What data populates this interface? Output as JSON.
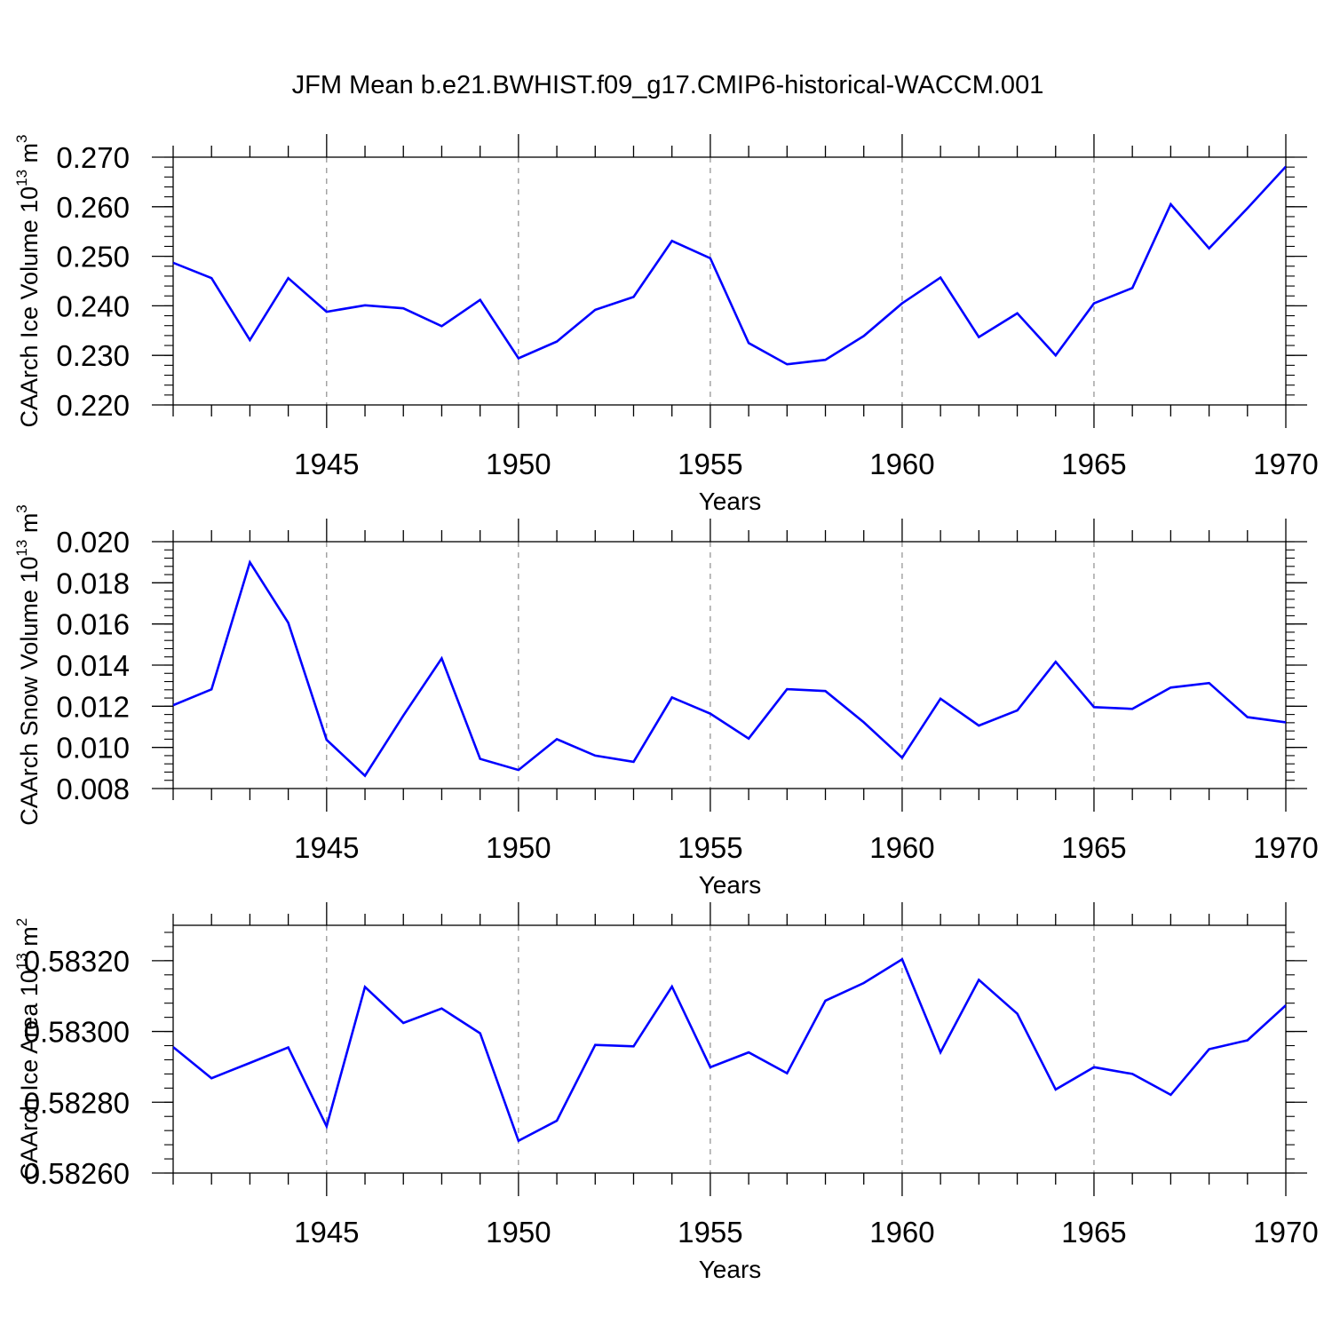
{
  "chart_data": [
    {
      "type": "line",
      "title": "JFM Mean b.e21.BWHIST.f09_g17.CMIP6-historical-WACCM.001",
      "xlabel": "Years",
      "ylabel": "CAArch Ice Volume 10",
      "ylabel_sup": "13",
      "ylabel_unit": " m",
      "ylabel_unit_sup": "3",
      "xlim": [
        1941,
        1970
      ],
      "ylim": [
        0.22,
        0.27
      ],
      "xticks": [
        "1945",
        "1950",
        "1955",
        "1960",
        "1965",
        "1970"
      ],
      "yticks": [
        "0.220",
        "0.230",
        "0.240",
        "0.250",
        "0.260",
        "0.270"
      ],
      "line_color": "#0000ff",
      "grid": "dashed vertical at major x ticks",
      "x": [
        1941,
        1942,
        1943,
        1944,
        1945,
        1946,
        1947,
        1948,
        1949,
        1950,
        1951,
        1952,
        1953,
        1954,
        1955,
        1956,
        1957,
        1958,
        1959,
        1960,
        1961,
        1962,
        1963,
        1964,
        1965,
        1966,
        1967,
        1968,
        1969,
        1970
      ],
      "series": [
        {
          "values": [
            0.2487,
            0.2456,
            0.2331,
            0.2456,
            0.2388,
            0.2401,
            0.2395,
            0.2359,
            0.2412,
            0.2294,
            0.2328,
            0.2392,
            0.2418,
            0.2531,
            0.2496,
            0.2325,
            0.2282,
            0.2291,
            0.2339,
            0.2405,
            0.2457,
            0.2337,
            0.2385,
            0.23,
            0.2405,
            0.2436,
            0.2605,
            0.2516,
            0.2597,
            0.2681
          ]
        }
      ]
    },
    {
      "type": "line",
      "title": "",
      "xlabel": "Years",
      "ylabel": "CAArch Snow Volume 10",
      "ylabel_sup": "13",
      "ylabel_unit": " m",
      "ylabel_unit_sup": "3",
      "xlim": [
        1941,
        1970
      ],
      "ylim": [
        0.008,
        0.02
      ],
      "xticks": [
        "1945",
        "1950",
        "1955",
        "1960",
        "1965",
        "1970"
      ],
      "yticks": [
        "0.008",
        "0.010",
        "0.012",
        "0.014",
        "0.016",
        "0.018",
        "0.020"
      ],
      "line_color": "#0000ff",
      "grid": "dashed vertical at major x ticks",
      "x": [
        1941,
        1942,
        1943,
        1944,
        1945,
        1946,
        1947,
        1948,
        1949,
        1950,
        1951,
        1952,
        1953,
        1954,
        1955,
        1956,
        1957,
        1958,
        1959,
        1960,
        1961,
        1962,
        1963,
        1964,
        1965,
        1966,
        1967,
        1968,
        1969,
        1970
      ],
      "series": [
        {
          "values": [
            0.01205,
            0.01282,
            0.019,
            0.01606,
            0.01037,
            0.00862,
            0.01155,
            0.01433,
            0.00944,
            0.0089,
            0.0104,
            0.0096,
            0.0093,
            0.01243,
            0.01164,
            0.01043,
            0.01283,
            0.01274,
            0.01122,
            0.0095,
            0.01237,
            0.01106,
            0.0118,
            0.01416,
            0.01196,
            0.01187,
            0.01291,
            0.01313,
            0.01147,
            0.01122
          ]
        }
      ]
    },
    {
      "type": "line",
      "title": "",
      "xlabel": "Years",
      "ylabel": "CAArch Ice Area 10",
      "ylabel_sup": "13",
      "ylabel_unit": " m",
      "ylabel_unit_sup": "2",
      "xlim": [
        1941,
        1970
      ],
      "ylim": [
        0.5826,
        0.5833
      ],
      "xticks": [
        "1945",
        "1950",
        "1955",
        "1960",
        "1965",
        "1970"
      ],
      "yticks": [
        "0.58260",
        "0.58280",
        "0.58300",
        "0.58320"
      ],
      "line_color": "#0000ff",
      "grid": "dashed vertical at major x ticks",
      "x": [
        1941,
        1942,
        1943,
        1944,
        1945,
        1946,
        1947,
        1948,
        1949,
        1950,
        1951,
        1952,
        1953,
        1954,
        1955,
        1956,
        1957,
        1958,
        1959,
        1960,
        1961,
        1962,
        1963,
        1964,
        1965,
        1966,
        1967,
        1968,
        1969,
        1970
      ],
      "series": [
        {
          "values": [
            0.582956,
            0.582868,
            0.582911,
            0.582955,
            0.582732,
            0.583126,
            0.583024,
            0.583065,
            0.582995,
            0.582691,
            0.582748,
            0.582962,
            0.582958,
            0.583127,
            0.582899,
            0.582941,
            0.582882,
            0.583087,
            0.583137,
            0.583204,
            0.582941,
            0.583146,
            0.58305,
            0.582836,
            0.582899,
            0.58288,
            0.582821,
            0.58295,
            0.582975,
            0.583074
          ]
        }
      ]
    }
  ]
}
